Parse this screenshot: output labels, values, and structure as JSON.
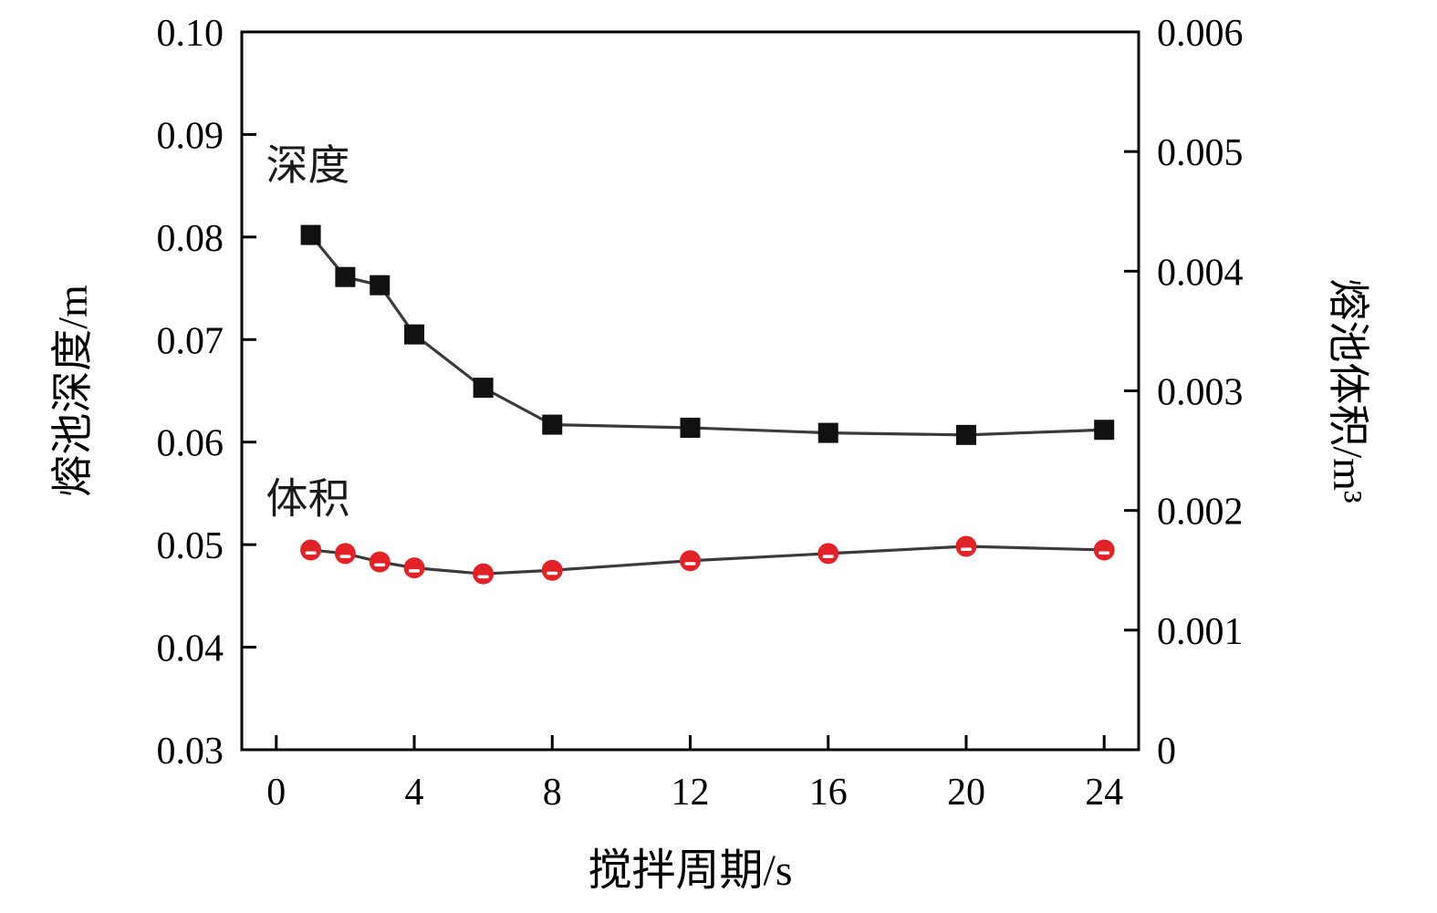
{
  "figure": {
    "background": "#ffffff",
    "frame_color": "#000000"
  },
  "chart_data": {
    "type": "line",
    "title": "",
    "xlabel": "搅拌周期/s",
    "ylabel_left": "熔池深度/m",
    "ylabel_right": "熔池体积/m³",
    "x": [
      1,
      2,
      3,
      4,
      6,
      8,
      12,
      16,
      20,
      24
    ],
    "series": [
      {
        "name": "深度",
        "axis": "left",
        "marker": "square",
        "marker_color": "#111111",
        "line_color": "#3b3b3b",
        "values": [
          0.0802,
          0.0761,
          0.0753,
          0.0705,
          0.0653,
          0.0617,
          0.0614,
          0.0609,
          0.0607,
          0.0612
        ]
      },
      {
        "name": "体积",
        "axis": "right",
        "marker": "circle",
        "marker_color": "#e32228",
        "line_color": "#3b3b3b",
        "values": [
          0.00167,
          0.00164,
          0.00157,
          0.00152,
          0.00147,
          0.0015,
          0.00158,
          0.00164,
          0.0017,
          0.00167
        ]
      }
    ],
    "xlim": [
      -1,
      25
    ],
    "xticks": [
      "0",
      "4",
      "8",
      "12",
      "16",
      "20",
      "24"
    ],
    "ylim_left": [
      0.03,
      0.1
    ],
    "yticks_left": [
      "0.03",
      "0.04",
      "0.05",
      "0.06",
      "0.07",
      "0.08",
      "0.09",
      "0.10"
    ],
    "ylim_right": [
      0,
      0.006
    ],
    "yticks_right": [
      "0",
      "0.001",
      "0.002",
      "0.003",
      "0.004",
      "0.005",
      "0.006"
    ],
    "grid": false,
    "legend_position": "none",
    "annotations": [
      {
        "text": "深度",
        "x": -0.3,
        "y_left": 0.087
      },
      {
        "text": "体积",
        "x": -0.3,
        "y_left": 0.0545
      }
    ]
  }
}
